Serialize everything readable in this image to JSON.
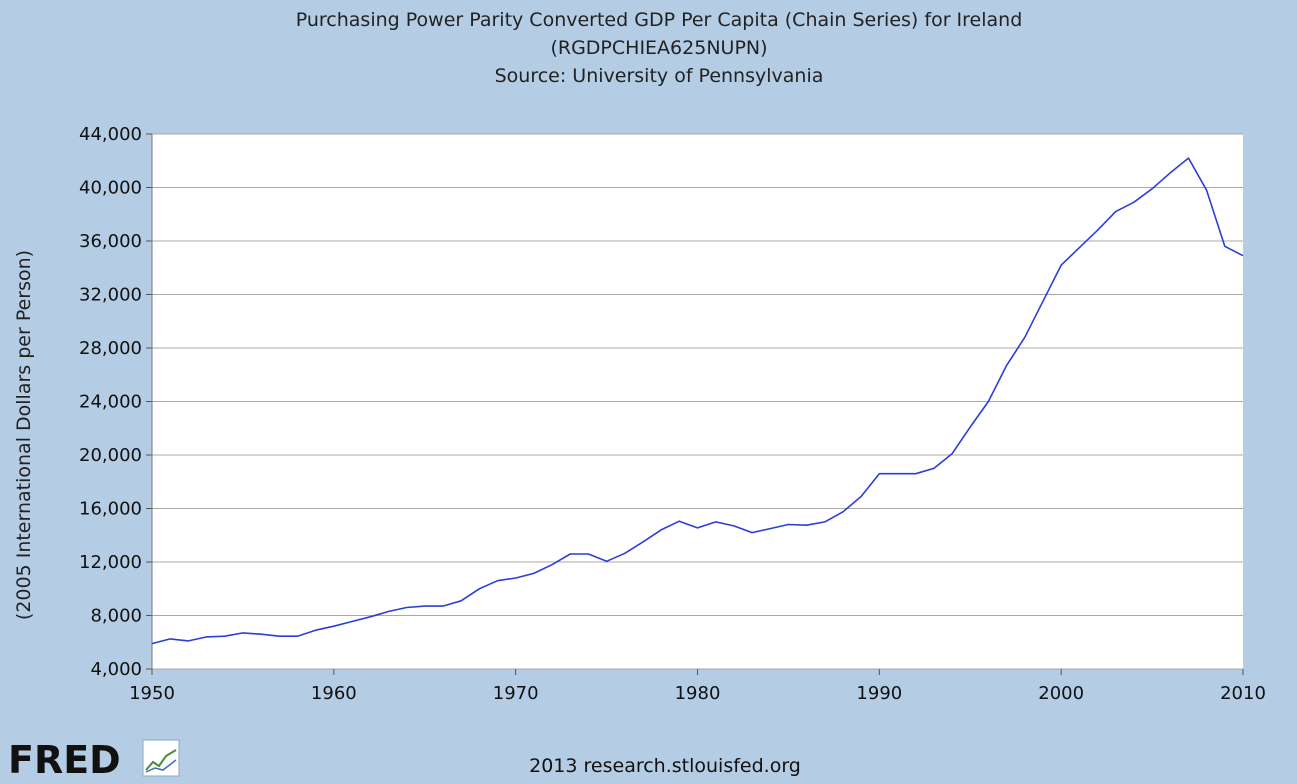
{
  "chart_data": {
    "type": "line",
    "title": "Purchasing Power Parity Converted GDP Per Capita (Chain Series) for Ireland",
    "subtitle": "(RGDPCHIEA625NUPN)",
    "source": "Source: University of Pennsylvania",
    "ylabel": "(2005 International Dollars per Person)",
    "xlabel": "",
    "xlim": [
      1950,
      2010
    ],
    "ylim": [
      4000,
      44000
    ],
    "x_ticks": [
      "1950",
      "1960",
      "1970",
      "1980",
      "1990",
      "2000",
      "2010"
    ],
    "y_ticks": [
      "4,000",
      "8,000",
      "12,000",
      "16,000",
      "20,000",
      "24,000",
      "28,000",
      "32,000",
      "36,000",
      "40,000",
      "44,000"
    ],
    "grid": true,
    "line_color": "#2b3fd6",
    "series": [
      {
        "x": [
          1950,
          1951,
          1952,
          1953,
          1954,
          1955,
          1956,
          1957,
          1958,
          1959,
          1960,
          1961,
          1962,
          1963,
          1964,
          1965,
          1966,
          1967,
          1968,
          1969,
          1970,
          1971,
          1972,
          1973,
          1974,
          1975,
          1976,
          1977,
          1978,
          1979,
          1980,
          1981,
          1982,
          1983,
          1984,
          1985,
          1986,
          1987,
          1988,
          1989,
          1990,
          1991,
          1992,
          1993,
          1994,
          1995,
          1996,
          1997,
          1998,
          1999,
          2000,
          2001,
          2002,
          2003,
          2004,
          2005,
          2006,
          2007,
          2008,
          2009,
          2010
        ],
        "values": [
          5900,
          6250,
          6100,
          6400,
          6450,
          6700,
          6600,
          6450,
          6450,
          6900,
          7200,
          7550,
          7900,
          8300,
          8600,
          8700,
          8700,
          9100,
          10000,
          10600,
          10800,
          11150,
          11800,
          12600,
          12600,
          12050,
          12650,
          13500,
          14400,
          15050,
          14550,
          15000,
          14700,
          14200,
          14500,
          14800,
          14750,
          15000,
          15750,
          16900,
          18600,
          18600,
          18600,
          19000,
          20100,
          22100,
          24000,
          26700,
          28800,
          31500,
          34200,
          35500,
          36800,
          38200,
          38900,
          39900,
          41100,
          42200,
          39800,
          35600,
          34900
        ]
      }
    ]
  },
  "footer": {
    "logo": "FRED",
    "credit": "2013 research.stlouisfed.org"
  }
}
